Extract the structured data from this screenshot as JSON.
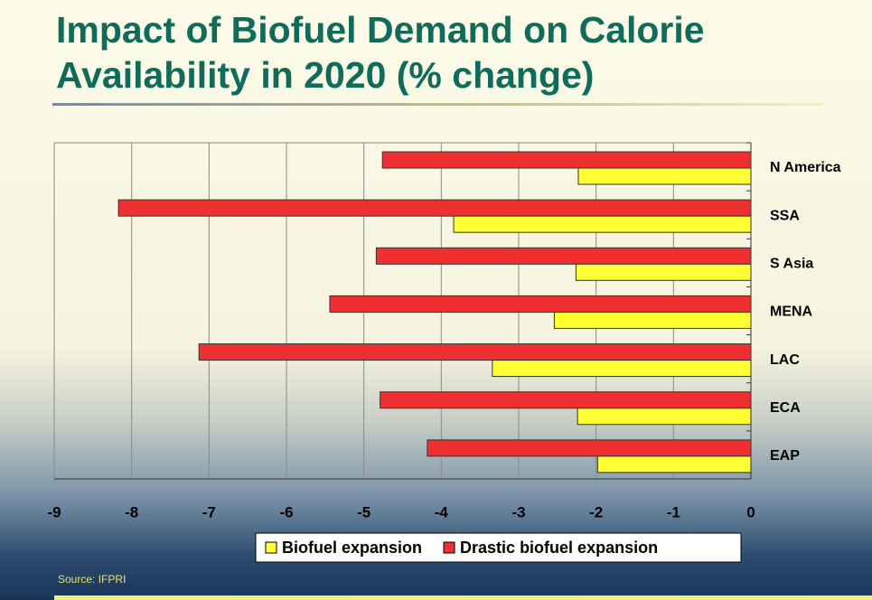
{
  "chart_data": {
    "type": "hbar",
    "title": "Impact of Biofuel Demand on Calorie Availability in 2020 (% change)",
    "source": "Source: IFPRI",
    "categories": [
      "N America",
      "SSA",
      "S Asia",
      "MENA",
      "LAC",
      "ECA",
      "EAP"
    ],
    "series": [
      {
        "name": "Biofuel expansion",
        "color": "#ffff33",
        "values": [
          -2.23,
          -3.84,
          -2.26,
          -2.54,
          -3.34,
          -2.24,
          -1.98
        ]
      },
      {
        "name": "Drastic biofuel expansion",
        "color": "#f03030",
        "values": [
          -4.76,
          -8.17,
          -4.84,
          -5.44,
          -7.13,
          -4.79,
          -4.18
        ]
      }
    ],
    "xlim": [
      -9,
      0
    ],
    "xticks": [
      -9,
      -8,
      -7,
      -6,
      -5,
      -4,
      -3,
      -2,
      -1,
      0
    ],
    "grid": true
  }
}
